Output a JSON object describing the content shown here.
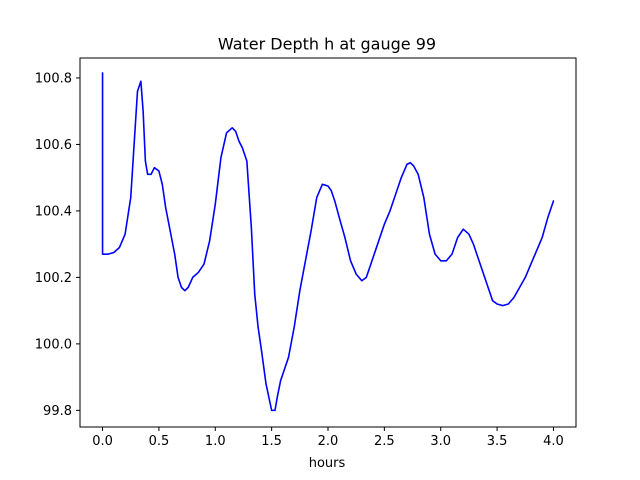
{
  "chart_data": {
    "type": "line",
    "title": "Water Depth h at gauge 99",
    "xlabel": "hours",
    "ylabel": "",
    "xlim": [
      -0.2,
      4.2
    ],
    "ylim": [
      99.75,
      100.86
    ],
    "grid": false,
    "xticks": [
      0.0,
      0.5,
      1.0,
      1.5,
      2.0,
      2.5,
      3.0,
      3.5,
      4.0
    ],
    "xtick_labels": [
      "0.0",
      "0.5",
      "1.0",
      "1.5",
      "2.0",
      "2.5",
      "3.0",
      "3.5",
      "4.0"
    ],
    "yticks": [
      99.8,
      100.0,
      100.2,
      100.4,
      100.6,
      100.8
    ],
    "ytick_labels": [
      "99.8",
      "100.0",
      "100.2",
      "100.4",
      "100.6",
      "100.8"
    ],
    "series": [
      {
        "color": "#0000ff",
        "x": [
          0.0,
          0.0,
          0.001,
          0.05,
          0.1,
          0.15,
          0.2,
          0.25,
          0.28,
          0.31,
          0.34,
          0.36,
          0.38,
          0.4,
          0.43,
          0.46,
          0.5,
          0.53,
          0.56,
          0.6,
          0.64,
          0.67,
          0.7,
          0.73,
          0.76,
          0.8,
          0.85,
          0.9,
          0.95,
          1.0,
          1.05,
          1.1,
          1.15,
          1.18,
          1.21,
          1.24,
          1.28,
          1.32,
          1.35,
          1.38,
          1.41,
          1.45,
          1.5,
          1.53,
          1.55,
          1.58,
          1.61,
          1.65,
          1.7,
          1.75,
          1.8,
          1.85,
          1.9,
          1.95,
          2.0,
          2.03,
          2.06,
          2.1,
          2.15,
          2.2,
          2.25,
          2.3,
          2.34,
          2.38,
          2.42,
          2.46,
          2.5,
          2.55,
          2.6,
          2.65,
          2.7,
          2.73,
          2.76,
          2.8,
          2.85,
          2.9,
          2.95,
          3.0,
          3.05,
          3.1,
          3.15,
          3.2,
          3.25,
          3.29,
          3.33,
          3.37,
          3.42,
          3.46,
          3.5,
          3.55,
          3.6,
          3.65,
          3.7,
          3.75,
          3.8,
          3.85,
          3.9,
          3.95,
          4.0
        ],
        "y": [
          100.815,
          100.27,
          100.27,
          100.27,
          100.275,
          100.29,
          100.33,
          100.44,
          100.6,
          100.76,
          100.79,
          100.7,
          100.55,
          100.51,
          100.51,
          100.53,
          100.52,
          100.48,
          100.41,
          100.34,
          100.27,
          100.2,
          100.17,
          100.16,
          100.17,
          100.2,
          100.215,
          100.24,
          100.31,
          100.42,
          100.56,
          100.635,
          100.65,
          100.64,
          100.61,
          100.59,
          100.55,
          100.35,
          100.15,
          100.05,
          99.98,
          99.88,
          99.8,
          99.8,
          99.84,
          99.89,
          99.92,
          99.96,
          100.05,
          100.16,
          100.25,
          100.34,
          100.44,
          100.48,
          100.475,
          100.46,
          100.43,
          100.38,
          100.32,
          100.25,
          100.21,
          100.19,
          100.2,
          100.24,
          100.28,
          100.32,
          100.36,
          100.4,
          100.45,
          100.5,
          100.54,
          100.545,
          100.535,
          100.51,
          100.44,
          100.33,
          100.27,
          100.25,
          100.25,
          100.27,
          100.32,
          100.345,
          100.33,
          100.3,
          100.26,
          100.22,
          100.17,
          100.13,
          100.12,
          100.115,
          100.12,
          100.14,
          100.17,
          100.2,
          100.24,
          100.28,
          100.32,
          100.38,
          100.43
        ]
      }
    ]
  }
}
